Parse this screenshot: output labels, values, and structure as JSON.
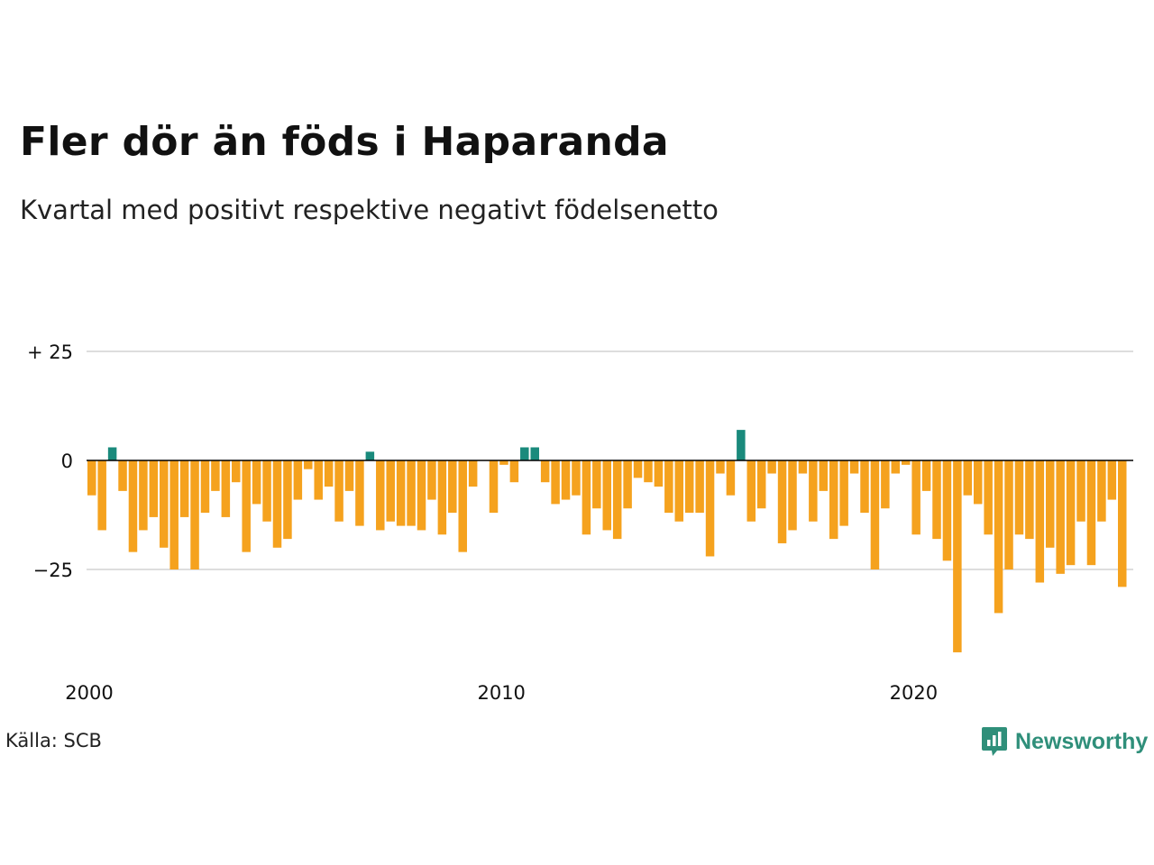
{
  "title": "Fler dör än föds i Haparanda",
  "subtitle": "Kvartal med positivt respektive negativt födelsenetto",
  "source": "Källa: SCB",
  "brand": "Newsworthy",
  "colors": {
    "positive": "#1a8a7c",
    "negative": "#f5a21e",
    "grid": "#dddddd",
    "zero_line": "#000000",
    "brand": "#2f8f7a"
  },
  "chart_data": {
    "type": "bar",
    "x_start": "2000 Q1",
    "y_ticks": [
      {
        "value": 25,
        "label": "+ 25"
      },
      {
        "value": 0,
        "label": "0"
      },
      {
        "value": -25,
        "label": "−25"
      }
    ],
    "x_ticks": [
      {
        "index": 0,
        "label": "2000"
      },
      {
        "index": 40,
        "label": "2010"
      },
      {
        "index": 80,
        "label": "2020"
      }
    ],
    "ylim": [
      -44,
      25
    ],
    "grid": true,
    "values": [
      -8,
      -16,
      3,
      -7,
      -21,
      -16,
      -13,
      -20,
      -25,
      -13,
      -25,
      -12,
      -7,
      -13,
      -5,
      -21,
      -10,
      -14,
      -20,
      -18,
      -9,
      -2,
      -9,
      -6,
      -14,
      -7,
      -15,
      2,
      -16,
      -14,
      -15,
      -15,
      -16,
      -9,
      -17,
      -12,
      -21,
      -6,
      0,
      -12,
      -1,
      -5,
      3,
      3,
      -5,
      -10,
      -9,
      -8,
      -17,
      -11,
      -16,
      -18,
      -11,
      -4,
      -5,
      -6,
      -12,
      -14,
      -12,
      -12,
      -22,
      -3,
      -8,
      7,
      -14,
      -11,
      -3,
      -19,
      -16,
      -3,
      -14,
      -7,
      -18,
      -15,
      -3,
      -12,
      -25,
      -11,
      -3,
      -1,
      -17,
      -7,
      -18,
      -23,
      -44,
      -8,
      -10,
      -17,
      -35,
      -25,
      -17,
      -18,
      -28,
      -20,
      -26,
      -24,
      -14,
      -24,
      -14,
      -9,
      -29
    ]
  }
}
